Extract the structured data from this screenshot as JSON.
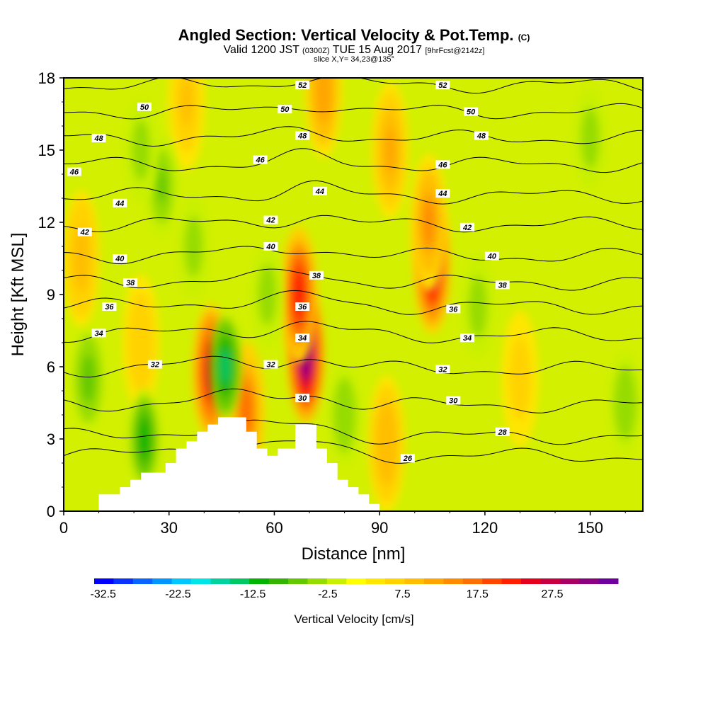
{
  "header": {
    "title": "Angled Section: Vertical Velocity & Pot.Temp.",
    "title_badge": "(C)",
    "valid_prefix": "Valid 1200 JST",
    "valid_utc": "(0300Z)",
    "valid_date": "TUE 15 Aug 2017",
    "valid_fcst": "[9hrFcst@2142z]",
    "slice": "slice X,Y= 34,23@135°"
  },
  "chart_data": {
    "type": "heatmap",
    "title": "Angled Section: Vertical Velocity & Pot.Temp.",
    "xlabel": "Distance [nm]",
    "ylabel": "Height [Kft MSL]",
    "xlim": [
      0,
      165
    ],
    "ylim": [
      0,
      18
    ],
    "xticks": [
      0,
      30,
      60,
      90,
      120,
      150
    ],
    "yticks": [
      0,
      3,
      6,
      9,
      12,
      15,
      18
    ],
    "colorbar": {
      "label": "Vertical Velocity [cm/s]",
      "tick_labels": [
        "-32.5",
        "-22.5",
        "-12.5",
        "-2.5",
        "7.5",
        "17.5",
        "27.5"
      ],
      "tick_values": [
        -32.5,
        -22.5,
        -12.5,
        -2.5,
        7.5,
        17.5,
        27.5
      ],
      "range": [
        -35,
        35
      ],
      "colors": [
        "#0000ff",
        "#0a32ff",
        "#0a64ff",
        "#0096ff",
        "#00c8ff",
        "#00e6e6",
        "#00d2a0",
        "#00c864",
        "#00b400",
        "#32b400",
        "#64c800",
        "#96dc00",
        "#c8f000",
        "#ffff00",
        "#ffe600",
        "#ffd200",
        "#ffbe00",
        "#ffa500",
        "#ff8c00",
        "#ff6e00",
        "#ff4600",
        "#ff1e00",
        "#e6001e",
        "#c80041",
        "#aa0064",
        "#8c0082",
        "#6e00a0"
      ]
    },
    "velocity_features": [
      {
        "x": 69,
        "y": 6.5,
        "peak": 32
      },
      {
        "x": 67,
        "y": 9.0,
        "peak": 22
      },
      {
        "x": 105,
        "y": 10.2,
        "peak": 25
      },
      {
        "x": 104,
        "y": 12.0,
        "peak": 12
      },
      {
        "x": 42,
        "y": 5.8,
        "peak": 24
      },
      {
        "x": 52,
        "y": 4.2,
        "peak": 15
      },
      {
        "x": 92,
        "y": 2.8,
        "peak": 9
      },
      {
        "x": 93,
        "y": 15.0,
        "peak": 10
      },
      {
        "x": 74,
        "y": 17.5,
        "peak": 11
      },
      {
        "x": 5,
        "y": 10.5,
        "peak": 8
      },
      {
        "x": 35,
        "y": 17.0,
        "peak": 7
      },
      {
        "x": 22,
        "y": 7.0,
        "peak": 6
      },
      {
        "x": 130,
        "y": 5.5,
        "peak": 5
      },
      {
        "x": 46,
        "y": 6.0,
        "peak": -16
      },
      {
        "x": 23,
        "y": 3.0,
        "peak": -12
      },
      {
        "x": 7,
        "y": 5.5,
        "peak": -8
      },
      {
        "x": 28,
        "y": 13.5,
        "peak": -7
      },
      {
        "x": 22,
        "y": 15.0,
        "peak": -5
      },
      {
        "x": 118,
        "y": 8.5,
        "peak": -5
      },
      {
        "x": 150,
        "y": 15.5,
        "peak": -5
      },
      {
        "x": 80,
        "y": 4.0,
        "peak": -6
      },
      {
        "x": 58,
        "y": 9.0,
        "peak": -5
      },
      {
        "x": 37,
        "y": 11.0,
        "peak": -5
      },
      {
        "x": 160,
        "y": 4.5,
        "peak": -6
      }
    ],
    "terrain_kft": [
      [
        0,
        0
      ],
      [
        10,
        0
      ],
      [
        10,
        0.7
      ],
      [
        16,
        0.7
      ],
      [
        16,
        1.0
      ],
      [
        19,
        1.0
      ],
      [
        19,
        1.3
      ],
      [
        22,
        1.3
      ],
      [
        22,
        1.6
      ],
      [
        29,
        1.6
      ],
      [
        29,
        2.0
      ],
      [
        32,
        2.0
      ],
      [
        32,
        2.6
      ],
      [
        35,
        2.6
      ],
      [
        35,
        2.9
      ],
      [
        38,
        2.9
      ],
      [
        38,
        3.3
      ],
      [
        41,
        3.3
      ],
      [
        41,
        3.6
      ],
      [
        44,
        3.6
      ],
      [
        44,
        3.9
      ],
      [
        52,
        3.9
      ],
      [
        52,
        3.3
      ],
      [
        55,
        3.3
      ],
      [
        55,
        2.6
      ],
      [
        58,
        2.6
      ],
      [
        58,
        2.3
      ],
      [
        61,
        2.3
      ],
      [
        61,
        2.6
      ],
      [
        66,
        2.6
      ],
      [
        66,
        3.6
      ],
      [
        72,
        3.6
      ],
      [
        72,
        2.6
      ],
      [
        75,
        2.6
      ],
      [
        75,
        2.0
      ],
      [
        78,
        2.0
      ],
      [
        78,
        1.3
      ],
      [
        81,
        1.3
      ],
      [
        81,
        1.0
      ],
      [
        84,
        1.0
      ],
      [
        84,
        0.7
      ],
      [
        87,
        0.7
      ],
      [
        87,
        0.3
      ],
      [
        90,
        0.3
      ],
      [
        90,
        0
      ],
      [
        165,
        0
      ]
    ],
    "isentropes": [
      {
        "theta": 26,
        "base": 2.3
      },
      {
        "theta": 28,
        "base": 3.1
      },
      {
        "theta": 30,
        "base": 4.4
      },
      {
        "theta": 32,
        "base": 5.9
      },
      {
        "theta": 34,
        "base": 7.3
      },
      {
        "theta": 36,
        "base": 8.5
      },
      {
        "theta": 38,
        "base": 9.5
      },
      {
        "theta": 40,
        "base": 10.6
      },
      {
        "theta": 42,
        "base": 11.9
      },
      {
        "theta": 44,
        "base": 13.1
      },
      {
        "theta": 46,
        "base": 14.4
      },
      {
        "theta": 48,
        "base": 15.5
      },
      {
        "theta": 50,
        "base": 16.6
      },
      {
        "theta": 52,
        "base": 17.7
      }
    ],
    "isentrope_labels": [
      {
        "text": "52",
        "x": 68,
        "y": 17.7
      },
      {
        "text": "52",
        "x": 108,
        "y": 17.7
      },
      {
        "text": "50",
        "x": 23,
        "y": 16.8
      },
      {
        "text": "50",
        "x": 63,
        "y": 16.7
      },
      {
        "text": "50",
        "x": 116,
        "y": 16.6
      },
      {
        "text": "48",
        "x": 10,
        "y": 15.5
      },
      {
        "text": "48",
        "x": 68,
        "y": 15.6
      },
      {
        "text": "48",
        "x": 119,
        "y": 15.6
      },
      {
        "text": "46",
        "x": 3,
        "y": 14.1
      },
      {
        "text": "46",
        "x": 56,
        "y": 14.6
      },
      {
        "text": "46",
        "x": 108,
        "y": 14.4
      },
      {
        "text": "44",
        "x": 16,
        "y": 12.8
      },
      {
        "text": "44",
        "x": 73,
        "y": 13.3
      },
      {
        "text": "44",
        "x": 108,
        "y": 13.2
      },
      {
        "text": "42",
        "x": 6,
        "y": 11.6
      },
      {
        "text": "42",
        "x": 59,
        "y": 12.1
      },
      {
        "text": "42",
        "x": 115,
        "y": 11.8
      },
      {
        "text": "40",
        "x": 16,
        "y": 10.5
      },
      {
        "text": "40",
        "x": 59,
        "y": 11.0
      },
      {
        "text": "40",
        "x": 122,
        "y": 10.6
      },
      {
        "text": "38",
        "x": 19,
        "y": 9.5
      },
      {
        "text": "38",
        "x": 72,
        "y": 9.8
      },
      {
        "text": "38",
        "x": 125,
        "y": 9.4
      },
      {
        "text": "36",
        "x": 13,
        "y": 8.5
      },
      {
        "text": "36",
        "x": 68,
        "y": 8.5
      },
      {
        "text": "36",
        "x": 111,
        "y": 8.4
      },
      {
        "text": "34",
        "x": 10,
        "y": 7.4
      },
      {
        "text": "34",
        "x": 68,
        "y": 7.2
      },
      {
        "text": "34",
        "x": 115,
        "y": 7.2
      },
      {
        "text": "32",
        "x": 26,
        "y": 6.1
      },
      {
        "text": "32",
        "x": 59,
        "y": 6.1
      },
      {
        "text": "32",
        "x": 108,
        "y": 5.9
      },
      {
        "text": "30",
        "x": 68,
        "y": 4.7
      },
      {
        "text": "30",
        "x": 111,
        "y": 4.6
      },
      {
        "text": "28",
        "x": 125,
        "y": 3.3
      },
      {
        "text": "26",
        "x": 98,
        "y": 2.2
      }
    ]
  }
}
